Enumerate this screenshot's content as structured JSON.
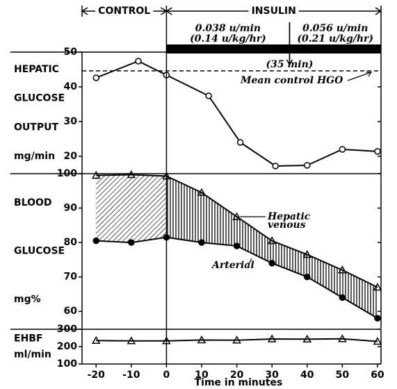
{
  "chart_data": [
    {
      "type": "line",
      "ylabel": [
        "HEPATIC",
        "GLUCOSE",
        "OUTPUT",
        "mg/min"
      ],
      "periods": [
        "CONTROL",
        "INSULIN"
      ],
      "insulin_start": 0,
      "doses": [
        {
          "rate": "0.038 u/min",
          "per_kg": "(0.14 u/kg/hr)"
        },
        {
          "rate": "0.056 u/min",
          "per_kg": "(0.21 u/kg/hr)"
        }
      ],
      "dose_change": {
        "value": 35,
        "label": "(35 min)"
      },
      "reference": {
        "value": 44.6,
        "label": "Mean control HGO"
      },
      "x": [
        -20,
        -8,
        0,
        12,
        21,
        31,
        40,
        50,
        60
      ],
      "series": [
        {
          "name": "Hepatic glucose output",
          "marker": "circle-open",
          "values": [
            42.6,
            47.4,
            43.4,
            37.4,
            24,
            17.2,
            17.4,
            22,
            21.4
          ]
        }
      ],
      "xlim": [
        -24,
        61
      ],
      "ylim": [
        15,
        50
      ],
      "yticks": [
        20,
        30,
        40,
        50
      ]
    },
    {
      "type": "line",
      "ylabel": [
        "BLOOD",
        "GLUCOSE",
        "mg%"
      ],
      "x": [
        -20,
        -10,
        0,
        10,
        20,
        30,
        40,
        50,
        60
      ],
      "series": [
        {
          "name": "Hepatic venous",
          "label_lines": [
            "Hepatic",
            "venous"
          ],
          "marker": "triangle-filled",
          "values": [
            99.5,
            99.7,
            99.3,
            94.5,
            87.5,
            80.5,
            76.5,
            72,
            67
          ]
        },
        {
          "name": "Arterial",
          "label_lines": [
            "Arterial"
          ],
          "marker": "circle-filled",
          "values": [
            80.5,
            80,
            81.5,
            80,
            79,
            74,
            70,
            64,
            58
          ]
        }
      ],
      "xlim": [
        -24,
        61
      ],
      "ylim": [
        55,
        100
      ],
      "yticks": [
        60,
        70,
        80,
        90,
        100
      ]
    },
    {
      "type": "line",
      "ylabel": [
        "EHBF",
        "ml/min"
      ],
      "x": [
        -20,
        -10,
        0,
        10,
        20,
        30,
        40,
        50,
        60
      ],
      "series": [
        {
          "name": "EHBF",
          "marker": "triangle-open",
          "values": [
            235,
            233,
            233,
            238,
            237,
            244,
            243,
            245,
            230
          ]
        }
      ],
      "xlim": [
        -24,
        61
      ],
      "ylim": [
        100,
        300
      ],
      "yticks": [
        100,
        200,
        300
      ],
      "xticks": [
        -20,
        -10,
        0,
        10,
        20,
        30,
        40,
        50,
        60
      ],
      "xlabel": "Time in minutes"
    }
  ]
}
